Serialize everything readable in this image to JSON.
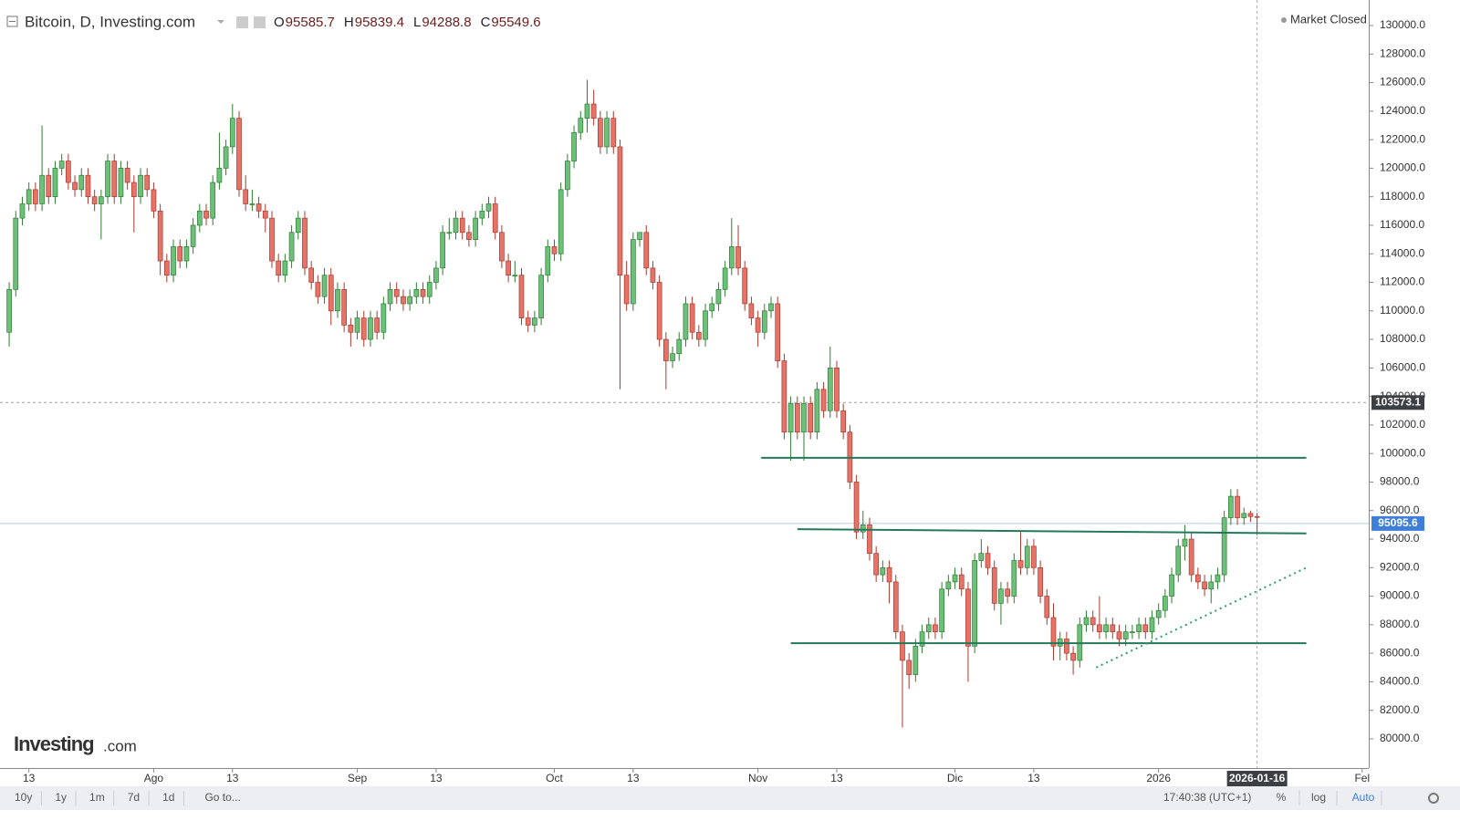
{
  "chart_data": {
    "type": "candlestick",
    "title": "Bitcoin, D, Investing.com",
    "market_status": "Market Closed",
    "ohlc_labels": [
      "O",
      "H",
      "L",
      "C"
    ],
    "up_color": "#6cc07a",
    "up_edge": "#2e7d32",
    "down_color": "#e57368",
    "down_edge": "#a8392e",
    "candles": [
      [
        108500,
        112000,
        107500,
        111500
      ],
      [
        111500,
        117000,
        111000,
        116500
      ],
      [
        116500,
        118000,
        116000,
        117500
      ],
      [
        117500,
        119000,
        117000,
        118500
      ],
      [
        118500,
        119000,
        117000,
        117500
      ],
      [
        117500,
        123000,
        117000,
        119500
      ],
      [
        119500,
        120000,
        117500,
        118000
      ],
      [
        118000,
        120500,
        117500,
        120000
      ],
      [
        120000,
        121000,
        119500,
        120500
      ],
      [
        120500,
        121000,
        118500,
        119000
      ],
      [
        119000,
        119500,
        118000,
        118500
      ],
      [
        118500,
        120000,
        118000,
        119500
      ],
      [
        119500,
        120000,
        117500,
        118000
      ],
      [
        118000,
        118500,
        117000,
        117500
      ],
      [
        117500,
        118500,
        115000,
        118000
      ],
      [
        118000,
        121000,
        117500,
        120500
      ],
      [
        120500,
        121000,
        117500,
        118000
      ],
      [
        118000,
        120500,
        117500,
        120000
      ],
      [
        120000,
        120500,
        118500,
        119000
      ],
      [
        119000,
        119500,
        115500,
        118000
      ],
      [
        118000,
        120000,
        117500,
        119500
      ],
      [
        119500,
        120000,
        118000,
        118500
      ],
      [
        118500,
        119000,
        116500,
        117000
      ],
      [
        117000,
        117500,
        112500,
        113500
      ],
      [
        113500,
        114000,
        112000,
        112500
      ],
      [
        112500,
        115000,
        112000,
        114500
      ],
      [
        114500,
        115000,
        113000,
        113500
      ],
      [
        113500,
        115000,
        113000,
        114500
      ],
      [
        114500,
        116500,
        114000,
        116000
      ],
      [
        116000,
        117500,
        115500,
        117000
      ],
      [
        117000,
        117500,
        116000,
        116500
      ],
      [
        116500,
        119500,
        116000,
        119000
      ],
      [
        119000,
        122500,
        118500,
        120000
      ],
      [
        120000,
        122000,
        119500,
        121500
      ],
      [
        121500,
        124500,
        121000,
        123500
      ],
      [
        123500,
        124000,
        118000,
        118500
      ],
      [
        118500,
        119500,
        117000,
        117500
      ],
      [
        117500,
        118500,
        117000,
        117500
      ],
      [
        117500,
        118000,
        116500,
        117000
      ],
      [
        117000,
        117500,
        115500,
        116500
      ],
      [
        116500,
        117000,
        113000,
        113500
      ],
      [
        113500,
        114000,
        112000,
        112500
      ],
      [
        112500,
        114000,
        112000,
        113500
      ],
      [
        113500,
        116000,
        113000,
        115500
      ],
      [
        115500,
        117000,
        115000,
        116500
      ],
      [
        116500,
        117000,
        112500,
        113000
      ],
      [
        113000,
        113500,
        111500,
        112000
      ],
      [
        112000,
        112500,
        110500,
        111000
      ],
      [
        111000,
        113000,
        110500,
        112500
      ],
      [
        112500,
        113000,
        109000,
        110000
      ],
      [
        110000,
        112000,
        109500,
        111500
      ],
      [
        111500,
        112000,
        108500,
        109000
      ],
      [
        109000,
        109500,
        107500,
        108500
      ],
      [
        108500,
        110000,
        108000,
        109500
      ],
      [
        109500,
        110000,
        107500,
        108000
      ],
      [
        108000,
        110000,
        107500,
        109500
      ],
      [
        109500,
        110000,
        108000,
        108500
      ],
      [
        108500,
        111000,
        108000,
        110500
      ],
      [
        110500,
        112000,
        110000,
        111500
      ],
      [
        111500,
        112000,
        110500,
        111000
      ],
      [
        111000,
        111500,
        110000,
        110500
      ],
      [
        110500,
        111500,
        110000,
        111000
      ],
      [
        111000,
        112000,
        110500,
        111500
      ],
      [
        111500,
        112000,
        110500,
        111000
      ],
      [
        111000,
        112500,
        110500,
        112000
      ],
      [
        112000,
        113500,
        111500,
        113000
      ],
      [
        113000,
        116000,
        112500,
        115500
      ],
      [
        115500,
        116500,
        115000,
        115500
      ],
      [
        115500,
        117000,
        115000,
        116500
      ],
      [
        116500,
        117000,
        115000,
        115500
      ],
      [
        115500,
        116000,
        114500,
        115000
      ],
      [
        115000,
        117000,
        114500,
        116500
      ],
      [
        116500,
        117500,
        116000,
        117000
      ],
      [
        117000,
        118000,
        116500,
        117500
      ],
      [
        117500,
        118000,
        115000,
        115500
      ],
      [
        115500,
        116000,
        113000,
        113500
      ],
      [
        113500,
        114000,
        112000,
        112500
      ],
      [
        112500,
        113500,
        112000,
        112500
      ],
      [
        112500,
        113000,
        109000,
        109500
      ],
      [
        109500,
        110000,
        108500,
        109000
      ],
      [
        109000,
        110000,
        108500,
        109500
      ],
      [
        109500,
        113000,
        109000,
        112500
      ],
      [
        112500,
        115000,
        112000,
        114500
      ],
      [
        114500,
        115000,
        113500,
        114000
      ],
      [
        114000,
        119000,
        113500,
        118500
      ],
      [
        118500,
        121000,
        118000,
        120500
      ],
      [
        120500,
        123000,
        120000,
        122500
      ],
      [
        122500,
        124000,
        122000,
        123500
      ],
      [
        123500,
        126200,
        122500,
        124500
      ],
      [
        124500,
        125500,
        123000,
        123500
      ],
      [
        123500,
        124000,
        121000,
        121500
      ],
      [
        121500,
        124000,
        121000,
        123500
      ],
      [
        123500,
        124000,
        121000,
        121500
      ],
      [
        121500,
        122000,
        104500,
        112500
      ],
      [
        112500,
        113500,
        110000,
        110500
      ],
      [
        110500,
        115500,
        110000,
        115000
      ],
      [
        115000,
        115500,
        114500,
        115500
      ],
      [
        115500,
        116000,
        112500,
        113000
      ],
      [
        113000,
        113500,
        111500,
        112000
      ],
      [
        112000,
        112500,
        107500,
        108000
      ],
      [
        108000,
        108500,
        104500,
        106500
      ],
      [
        106500,
        107500,
        106000,
        107000
      ],
      [
        107000,
        108500,
        106500,
        108000
      ],
      [
        108000,
        111000,
        107500,
        110500
      ],
      [
        110500,
        111000,
        108000,
        108500
      ],
      [
        108500,
        109000,
        107500,
        108000
      ],
      [
        108000,
        110500,
        107500,
        110000
      ],
      [
        110000,
        111000,
        109500,
        110500
      ],
      [
        110500,
        112000,
        110000,
        111500
      ],
      [
        111500,
        113500,
        111000,
        113000
      ],
      [
        113000,
        116500,
        112500,
        114500
      ],
      [
        114500,
        116000,
        112500,
        113000
      ],
      [
        113000,
        113500,
        110000,
        110500
      ],
      [
        110500,
        111000,
        109000,
        109500
      ],
      [
        109500,
        110000,
        107500,
        108500
      ],
      [
        108500,
        110500,
        108000,
        110000
      ],
      [
        110000,
        111000,
        109500,
        110500
      ],
      [
        110500,
        111000,
        106000,
        106500
      ],
      [
        106500,
        107000,
        101000,
        101500
      ],
      [
        101500,
        104000,
        99500,
        103500
      ],
      [
        103500,
        104000,
        101000,
        101500
      ],
      [
        101500,
        104000,
        99500,
        103500
      ],
      [
        103500,
        104000,
        101000,
        101500
      ],
      [
        101500,
        105000,
        101000,
        104500
      ],
      [
        104500,
        105000,
        102500,
        103000
      ],
      [
        103000,
        107500,
        102500,
        106000
      ],
      [
        106000,
        106500,
        102500,
        103000
      ],
      [
        103000,
        103500,
        101000,
        101500
      ],
      [
        101500,
        102000,
        97500,
        98000
      ],
      [
        98000,
        98500,
        94000,
        94500
      ],
      [
        94500,
        96000,
        94000,
        95000
      ],
      [
        95000,
        95500,
        92500,
        93000
      ],
      [
        93000,
        93500,
        91000,
        91500
      ],
      [
        91500,
        92500,
        91000,
        92000
      ],
      [
        92000,
        92500,
        89500,
        91000
      ],
      [
        91000,
        91500,
        87000,
        87500
      ],
      [
        87500,
        88000,
        80800,
        85500
      ],
      [
        85500,
        86000,
        83500,
        84500
      ],
      [
        84500,
        87000,
        84000,
        86500
      ],
      [
        86500,
        88000,
        86000,
        87500
      ],
      [
        87500,
        88500,
        87000,
        88000
      ],
      [
        88000,
        88500,
        87000,
        87500
      ],
      [
        87500,
        91000,
        87000,
        90500
      ],
      [
        90500,
        91500,
        90000,
        91000
      ],
      [
        91000,
        92000,
        90500,
        91500
      ],
      [
        91500,
        92000,
        90000,
        90500
      ],
      [
        90500,
        91000,
        84000,
        86500
      ],
      [
        86500,
        93000,
        86000,
        92500
      ],
      [
        92500,
        94000,
        92000,
        93000
      ],
      [
        93000,
        93500,
        91500,
        92000
      ],
      [
        92000,
        92500,
        89000,
        89500
      ],
      [
        89500,
        91000,
        88000,
        90500
      ],
      [
        90500,
        91000,
        89500,
        90000
      ],
      [
        90000,
        93000,
        89500,
        92500
      ],
      [
        92500,
        94500,
        91500,
        92000
      ],
      [
        92000,
        94000,
        91500,
        93500
      ],
      [
        93500,
        94000,
        91500,
        92000
      ],
      [
        92000,
        92500,
        89500,
        90000
      ],
      [
        90000,
        90500,
        88000,
        88500
      ],
      [
        88500,
        89500,
        85500,
        86500
      ],
      [
        86500,
        87500,
        85500,
        87000
      ],
      [
        87000,
        87500,
        85500,
        86000
      ],
      [
        86000,
        86500,
        84500,
        85500
      ],
      [
        85500,
        88500,
        85000,
        88000
      ],
      [
        88000,
        89000,
        87500,
        88500
      ],
      [
        88500,
        89000,
        87500,
        88000
      ],
      [
        88000,
        90000,
        87000,
        87500
      ],
      [
        87500,
        88500,
        87000,
        88000
      ],
      [
        88000,
        88500,
        87000,
        87500
      ],
      [
        87500,
        88000,
        86500,
        87000
      ],
      [
        87000,
        88000,
        86500,
        87500
      ],
      [
        87500,
        88000,
        87000,
        87500
      ],
      [
        87500,
        88500,
        87000,
        88000
      ],
      [
        88000,
        88500,
        87000,
        87500
      ],
      [
        87500,
        89000,
        87000,
        88500
      ],
      [
        88500,
        89500,
        88000,
        89000
      ],
      [
        89000,
        90500,
        88500,
        90000
      ],
      [
        90000,
        92000,
        89500,
        91500
      ],
      [
        91500,
        94000,
        91000,
        93500
      ],
      [
        93500,
        95000,
        92500,
        94000
      ],
      [
        94000,
        94500,
        91000,
        91500
      ],
      [
        91500,
        92000,
        90500,
        91000
      ],
      [
        91000,
        91500,
        90000,
        90500
      ],
      [
        90500,
        91500,
        89500,
        91000
      ],
      [
        91000,
        92000,
        90500,
        91500
      ],
      [
        91500,
        96000,
        91000,
        95500
      ],
      [
        95500,
        97500,
        95000,
        97000
      ],
      [
        97000,
        97500,
        95000,
        95500
      ],
      [
        95500,
        96200,
        95000,
        95800
      ],
      [
        95800,
        96000,
        95200,
        95585.7
      ],
      [
        95585.7,
        95839.4,
        94288.8,
        95549.6
      ]
    ],
    "xlim": [
      -1.4,
      207
    ],
    "xticks": [
      {
        "value": 3,
        "label": "13"
      },
      {
        "value": 22,
        "label": "Ago"
      },
      {
        "value": 34,
        "label": "13"
      },
      {
        "value": 53,
        "label": "Sep"
      },
      {
        "value": 65,
        "label": "13"
      },
      {
        "value": 83,
        "label": "Oct"
      },
      {
        "value": 95,
        "label": "13"
      },
      {
        "value": 114,
        "label": "Nov"
      },
      {
        "value": 126,
        "label": "13"
      },
      {
        "value": 144,
        "label": "Dic"
      },
      {
        "value": 156,
        "label": "13"
      },
      {
        "value": 175,
        "label": "2026"
      },
      {
        "value": 206,
        "label": "Fel"
      }
    ],
    "crosshair": {
      "value": 190,
      "label": "2026-01-16"
    },
    "ylim": [
      78080,
      131790
    ],
    "yticks": [
      {
        "value": 80000,
        "label": "80000.0"
      },
      {
        "value": 82000,
        "label": "82000.0"
      },
      {
        "value": 84000,
        "label": "84000.0"
      },
      {
        "value": 86000,
        "label": "86000.0"
      },
      {
        "value": 88000,
        "label": "88000.0"
      },
      {
        "value": 90000,
        "label": "90000.0"
      },
      {
        "value": 92000,
        "label": "92000.0"
      },
      {
        "value": 94000,
        "label": "94000.0"
      },
      {
        "value": 96000,
        "label": "96000.0"
      },
      {
        "value": 98000,
        "label": "98000.0"
      },
      {
        "value": 100000,
        "label": "100000.0"
      },
      {
        "value": 102000,
        "label": "102000.0"
      },
      {
        "value": 104000,
        "label": "104000.0"
      },
      {
        "value": 106000,
        "label": "106000.0"
      },
      {
        "value": 108000,
        "label": "108000.0"
      },
      {
        "value": 110000,
        "label": "110000.0"
      },
      {
        "value": 112000,
        "label": "112000.0"
      },
      {
        "value": 114000,
        "label": "114000.0"
      },
      {
        "value": 116000,
        "label": "116000.0"
      },
      {
        "value": 118000,
        "label": "118000.0"
      },
      {
        "value": 120000,
        "label": "120000.0"
      },
      {
        "value": 122000,
        "label": "122000.0"
      },
      {
        "value": 124000,
        "label": "124000.0"
      },
      {
        "value": 126000,
        "label": "126000.0"
      },
      {
        "value": 128000,
        "label": "128000.0"
      },
      {
        "value": 130000,
        "label": "130000.0"
      }
    ],
    "price_lines": [
      {
        "value": 103573.1,
        "color": "#9aa0a6",
        "label_bg": "#3c3f44",
        "dash": true
      },
      {
        "value": 95095.6,
        "color": "#b8cbe0",
        "label_bg": "#3d7fd9",
        "dash": false
      }
    ],
    "drawings": [
      {
        "x": [
          114.5,
          197.5
        ],
        "y": [
          99700,
          99700
        ],
        "color": "#237a5a",
        "style": "solid"
      },
      {
        "x": [
          120,
          197.5
        ],
        "y": [
          94700,
          94400
        ],
        "color": "#237a5a",
        "style": "solid"
      },
      {
        "x": [
          119,
          197.5
        ],
        "y": [
          86700,
          86700
        ],
        "color": "#237a5a",
        "style": "solid"
      },
      {
        "x": [
          165.5,
          197.5
        ],
        "y": [
          85000,
          92000
        ],
        "color": "#2e9e6a",
        "style": "dotted"
      }
    ]
  },
  "logo": {
    "main": "Investing",
    "suffix": ".com"
  },
  "toolbar": {
    "ranges": [
      "10y",
      "1y",
      "1m",
      "7d",
      "1d"
    ],
    "goto": "Go to...",
    "time": "17:40:38 (UTC+1)",
    "options": [
      "%",
      "log",
      "Auto"
    ]
  }
}
